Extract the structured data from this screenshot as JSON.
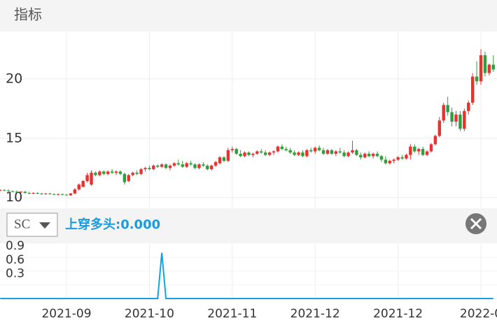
{
  "header": {
    "title": "指标"
  },
  "indicator": {
    "selector": "SC",
    "label": "上穿多头:0.000"
  },
  "chart_data": [
    {
      "type": "candlestick",
      "up_color": "#e8322f",
      "down_color": "#2f9e3c",
      "ylim": [
        9.1,
        24
      ],
      "yticks": [
        10,
        15,
        20
      ],
      "grid": true,
      "ohlc": [
        [
          10.6,
          10.7,
          10.55,
          10.65
        ],
        [
          10.65,
          10.7,
          10.55,
          10.6
        ],
        [
          10.6,
          10.7,
          10.5,
          10.55
        ],
        [
          10.55,
          10.6,
          10.45,
          10.5
        ],
        [
          10.5,
          10.6,
          10.4,
          10.45
        ],
        [
          10.45,
          10.55,
          10.4,
          10.5
        ],
        [
          10.5,
          10.55,
          10.35,
          10.4
        ],
        [
          10.4,
          10.5,
          10.3,
          10.35
        ],
        [
          10.35,
          10.45,
          10.3,
          10.4
        ],
        [
          10.4,
          10.45,
          10.3,
          10.35
        ],
        [
          10.35,
          10.4,
          10.25,
          10.3
        ],
        [
          10.3,
          10.4,
          10.25,
          10.35
        ],
        [
          10.35,
          10.4,
          10.25,
          10.3
        ],
        [
          10.3,
          10.35,
          10.2,
          10.25
        ],
        [
          10.25,
          10.35,
          10.2,
          10.3
        ],
        [
          10.3,
          10.35,
          10.2,
          10.25
        ],
        [
          10.25,
          10.3,
          10.15,
          10.2
        ],
        [
          10.2,
          10.4,
          10.15,
          10.35
        ],
        [
          10.35,
          10.8,
          10.3,
          10.7
        ],
        [
          10.7,
          11.2,
          10.6,
          11.1
        ],
        [
          10.9,
          11.5,
          10.9,
          11.4
        ],
        [
          11.4,
          12.1,
          11.3,
          11.9
        ],
        [
          11.1,
          12.3,
          11.0,
          12.1
        ],
        [
          12.1,
          12.2,
          11.8,
          11.9
        ],
        [
          11.9,
          12.3,
          11.8,
          12.2
        ],
        [
          12.2,
          12.3,
          11.9,
          12.0
        ],
        [
          12.0,
          12.3,
          11.9,
          12.2
        ],
        [
          12.2,
          12.4,
          12.0,
          12.1
        ],
        [
          12.1,
          12.3,
          11.9,
          12.2
        ],
        [
          12.2,
          12.3,
          11.9,
          12.0
        ],
        [
          12.0,
          12.1,
          11.1,
          11.3
        ],
        [
          11.4,
          12.0,
          11.3,
          11.9
        ],
        [
          11.9,
          12.2,
          11.8,
          12.1
        ],
        [
          12.1,
          12.3,
          11.9,
          12.0
        ],
        [
          12.0,
          12.5,
          11.9,
          12.4
        ],
        [
          12.4,
          12.6,
          12.2,
          12.5
        ],
        [
          12.5,
          12.7,
          12.3,
          12.4
        ],
        [
          12.4,
          12.8,
          12.3,
          12.7
        ],
        [
          12.7,
          12.8,
          12.5,
          12.6
        ],
        [
          12.6,
          12.9,
          12.5,
          12.8
        ],
        [
          12.8,
          12.9,
          12.4,
          12.5
        ],
        [
          12.5,
          12.8,
          12.3,
          12.7
        ],
        [
          12.7,
          13.0,
          12.6,
          12.9
        ],
        [
          12.9,
          13.2,
          12.7,
          12.8
        ],
        [
          12.8,
          13.1,
          12.5,
          12.6
        ],
        [
          12.6,
          13.0,
          12.5,
          12.9
        ],
        [
          12.9,
          13.1,
          12.7,
          12.8
        ],
        [
          12.8,
          12.9,
          12.4,
          12.5
        ],
        [
          12.5,
          12.9,
          12.4,
          12.8
        ],
        [
          12.8,
          13.0,
          12.6,
          12.7
        ],
        [
          12.7,
          12.8,
          12.3,
          12.4
        ],
        [
          12.4,
          12.8,
          12.3,
          12.7
        ],
        [
          12.7,
          13.1,
          12.6,
          13.0
        ],
        [
          12.9,
          13.5,
          12.8,
          13.4
        ],
        [
          13.4,
          13.5,
          13.0,
          13.1
        ],
        [
          13.1,
          14.2,
          13.0,
          14.0
        ],
        [
          14.0,
          14.3,
          13.8,
          14.1
        ],
        [
          14.1,
          14.2,
          13.6,
          13.7
        ],
        [
          13.7,
          14.0,
          13.4,
          13.5
        ],
        [
          13.5,
          13.9,
          13.4,
          13.8
        ],
        [
          13.8,
          13.9,
          13.5,
          13.6
        ],
        [
          13.6,
          13.8,
          13.4,
          13.7
        ],
        [
          13.7,
          14.0,
          13.6,
          13.9
        ],
        [
          13.9,
          14.1,
          13.7,
          13.8
        ],
        [
          13.8,
          14.0,
          13.5,
          13.6
        ],
        [
          13.6,
          13.9,
          13.5,
          13.8
        ],
        [
          13.8,
          14.0,
          13.6,
          13.9
        ],
        [
          13.9,
          14.4,
          13.8,
          14.3
        ],
        [
          14.3,
          14.5,
          14.0,
          14.1
        ],
        [
          14.1,
          14.3,
          13.9,
          14.0
        ],
        [
          14.0,
          14.2,
          13.7,
          13.8
        ],
        [
          13.8,
          14.0,
          13.5,
          13.6
        ],
        [
          13.6,
          13.9,
          13.5,
          13.8
        ],
        [
          13.8,
          14.0,
          13.4,
          13.5
        ],
        [
          13.5,
          14.1,
          13.4,
          14.0
        ],
        [
          14.0,
          14.2,
          13.8,
          13.9
        ],
        [
          13.9,
          14.3,
          13.7,
          14.2
        ],
        [
          14.2,
          14.4,
          13.9,
          14.0
        ],
        [
          14.0,
          14.2,
          13.6,
          13.7
        ],
        [
          13.7,
          14.1,
          13.6,
          14.0
        ],
        [
          14.0,
          14.1,
          13.6,
          13.7
        ],
        [
          13.7,
          14.0,
          13.5,
          13.9
        ],
        [
          13.9,
          14.2,
          13.7,
          13.8
        ],
        [
          13.8,
          14.0,
          13.4,
          13.5
        ],
        [
          13.5,
          13.9,
          13.4,
          13.8
        ],
        [
          13.8,
          14.8,
          13.7,
          14.0
        ],
        [
          14.0,
          14.1,
          13.5,
          13.6
        ],
        [
          13.6,
          13.8,
          13.2,
          13.4
        ],
        [
          13.4,
          13.8,
          13.3,
          13.7
        ],
        [
          13.7,
          13.9,
          13.4,
          13.5
        ],
        [
          13.5,
          13.8,
          13.3,
          13.7
        ],
        [
          13.7,
          13.9,
          13.4,
          13.5
        ],
        [
          13.5,
          13.6,
          13.0,
          13.2
        ],
        [
          13.2,
          13.5,
          12.8,
          12.9
        ],
        [
          12.9,
          13.2,
          12.8,
          13.1
        ],
        [
          13.1,
          13.3,
          12.9,
          13.2
        ],
        [
          13.2,
          13.5,
          13.1,
          13.4
        ],
        [
          13.4,
          13.6,
          13.2,
          13.3
        ],
        [
          13.3,
          13.7,
          13.2,
          13.6
        ],
        [
          13.6,
          14.5,
          13.2,
          14.3
        ],
        [
          14.3,
          14.5,
          13.8,
          13.9
        ],
        [
          13.9,
          14.2,
          13.6,
          14.1
        ],
        [
          14.1,
          14.3,
          13.5,
          13.6
        ],
        [
          13.6,
          14.0,
          13.5,
          13.9
        ],
        [
          13.9,
          14.6,
          13.8,
          14.5
        ],
        [
          14.5,
          15.3,
          14.4,
          15.2
        ],
        [
          15.2,
          16.8,
          15.1,
          16.5
        ],
        [
          16.5,
          18.0,
          16.3,
          17.8
        ],
        [
          17.8,
          18.5,
          16.9,
          17.2
        ],
        [
          17.2,
          17.6,
          16.0,
          16.4
        ],
        [
          16.4,
          17.3,
          16.0,
          17.0
        ],
        [
          17.0,
          17.3,
          15.6,
          15.8
        ],
        [
          15.8,
          17.5,
          15.6,
          17.3
        ],
        [
          17.3,
          18.2,
          17.0,
          18.0
        ],
        [
          18.0,
          20.5,
          17.8,
          20.2
        ],
        [
          20.2,
          21.5,
          19.5,
          19.8
        ],
        [
          19.8,
          22.5,
          19.5,
          22.0
        ],
        [
          22.0,
          22.3,
          20.2,
          20.5
        ],
        [
          20.5,
          21.3,
          20.3,
          21.2
        ],
        [
          21.2,
          22.0,
          20.6,
          20.8
        ]
      ]
    },
    {
      "type": "line",
      "color": "#19a0e3",
      "ylim": [
        0,
        1.2
      ],
      "yticks": [
        0.9,
        0.6,
        0.3
      ],
      "categories": [
        null,
        null,
        null,
        null,
        null,
        null,
        null,
        null,
        null,
        null,
        null,
        null,
        null,
        null,
        null,
        null,
        "2021-09",
        null,
        null,
        null,
        null,
        null,
        null,
        null,
        null,
        null,
        null,
        null,
        null,
        null,
        null,
        null,
        null,
        null,
        null,
        null,
        "2021-10",
        null,
        null,
        null,
        null,
        null,
        null,
        null,
        null,
        null,
        null,
        null,
        null,
        null,
        null,
        null,
        null,
        null,
        null,
        null,
        "2021-11",
        null,
        null,
        null,
        null,
        null,
        null,
        null,
        null,
        null,
        null,
        null,
        null,
        null,
        null,
        null,
        null,
        null,
        null,
        null,
        "2021-12",
        null,
        null,
        null,
        null,
        null,
        null,
        null,
        null,
        null,
        null,
        null,
        null,
        null,
        null,
        null,
        null,
        null,
        null,
        null,
        "2021-12",
        null,
        null,
        null,
        null,
        null,
        null,
        null,
        null,
        null,
        null,
        null,
        null,
        null,
        null,
        null,
        null,
        null,
        null,
        null,
        "2022-0",
        null,
        null,
        null
      ],
      "values": [
        0,
        0,
        0,
        0,
        0,
        0,
        0,
        0,
        0,
        0,
        0,
        0,
        0,
        0,
        0,
        0,
        0,
        0,
        0,
        0,
        0,
        0,
        0,
        0,
        0,
        0,
        0,
        0,
        0,
        0,
        0,
        0,
        0,
        0,
        0,
        0,
        0,
        0,
        0,
        1,
        0,
        0,
        0,
        0,
        0,
        0,
        0,
        0,
        0,
        0,
        0,
        0,
        0,
        0,
        0,
        0,
        0,
        0,
        0,
        0,
        0,
        0,
        0,
        0,
        0,
        0,
        0,
        0,
        0,
        0,
        0,
        0,
        0,
        0,
        0,
        0,
        0,
        0,
        0,
        0,
        0,
        0,
        0,
        0,
        0,
        0,
        0,
        0,
        0,
        0,
        0,
        0,
        0,
        0,
        0,
        0,
        0,
        0,
        0,
        0,
        0,
        0,
        0,
        0,
        0,
        0,
        0,
        0,
        0,
        0,
        0,
        0,
        0,
        0,
        0,
        0,
        0,
        0,
        0,
        0
      ]
    }
  ]
}
